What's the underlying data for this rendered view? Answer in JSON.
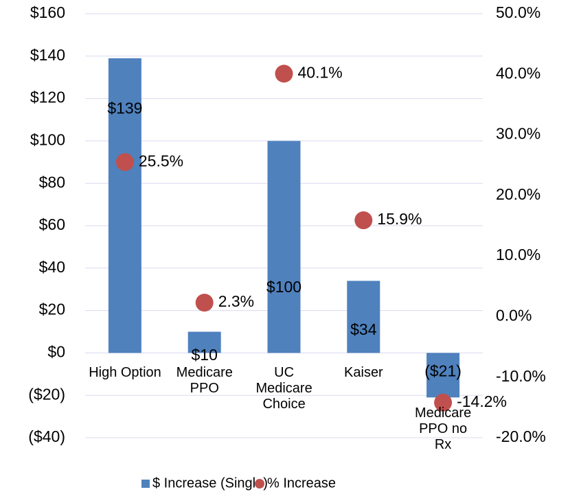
{
  "chart_data": {
    "type": "bar+scatter",
    "categories": [
      "High Option",
      "Medicare PPO",
      "UC Medicare Choice",
      "Kaiser",
      "Medicare PPO no Rx"
    ],
    "series": [
      {
        "name": "$ Increase (Single)",
        "type": "bar",
        "color": "#4f81bd",
        "values": [
          139,
          10,
          100,
          34,
          -21
        ],
        "value_labels": [
          "$139",
          "$10",
          "$100",
          "$34",
          "($21)"
        ]
      },
      {
        "name": "% Increase",
        "type": "scatter",
        "axis": "y2",
        "color": "#c0504d",
        "values": [
          25.5,
          2.3,
          40.1,
          15.9,
          -14.2
        ],
        "value_labels": [
          "25.5%",
          "2.3%",
          "40.1%",
          "15.9%",
          "-14.2%"
        ]
      }
    ],
    "ylim": [
      -40,
      160
    ],
    "yticks": [
      {
        "value": -40,
        "label": "($40)"
      },
      {
        "value": -20,
        "label": "($20)"
      },
      {
        "value": 0,
        "label": "$0"
      },
      {
        "value": 20,
        "label": "$20"
      },
      {
        "value": 40,
        "label": "$40"
      },
      {
        "value": 60,
        "label": "$60"
      },
      {
        "value": 80,
        "label": "$80"
      },
      {
        "value": 100,
        "label": "$100"
      },
      {
        "value": 120,
        "label": "$120"
      },
      {
        "value": 140,
        "label": "$140"
      },
      {
        "value": 160,
        "label": "$160"
      }
    ],
    "y2lim": [
      -20,
      50
    ],
    "y2ticks": [
      {
        "value": -20,
        "label": "-20.0%"
      },
      {
        "value": -10,
        "label": "-10.0%"
      },
      {
        "value": 0,
        "label": "0.0%"
      },
      {
        "value": 10,
        "label": "10.0%"
      },
      {
        "value": 20,
        "label": "20.0%"
      },
      {
        "value": 30,
        "label": "30.0%"
      },
      {
        "value": 40,
        "label": "40.0%"
      },
      {
        "value": 50,
        "label": "50.0%"
      }
    ],
    "grid": true,
    "legend": "bottom",
    "negative_label_color": "#ff0000"
  }
}
